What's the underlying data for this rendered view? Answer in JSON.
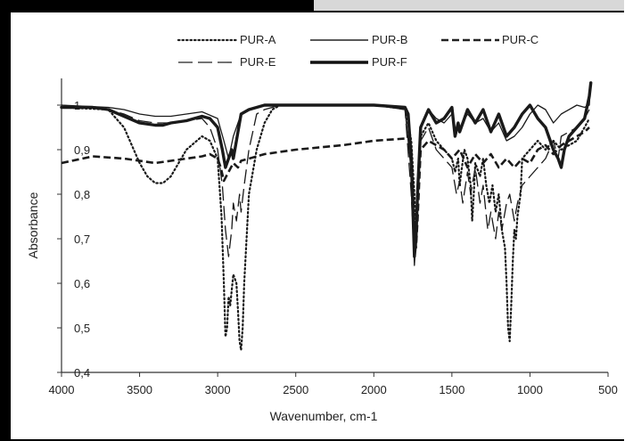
{
  "chart_data": {
    "type": "line",
    "title": "",
    "xlabel": "Wavenumber, cm-1",
    "ylabel": "Absorbance",
    "xlim": [
      4000,
      500
    ],
    "ylim": [
      0.4,
      1.06
    ],
    "x_ticks": [
      "4000",
      "3500",
      "3000",
      "2500",
      "2000",
      "1500",
      "1000",
      "500"
    ],
    "x_tick_values": [
      4000,
      3500,
      3000,
      2500,
      2000,
      1500,
      1000,
      500
    ],
    "y_ticks": [
      "0,4",
      "0,5",
      "0,6",
      "0,7",
      "0,8",
      "0,9",
      "1"
    ],
    "y_tick_values": [
      0.4,
      0.5,
      0.6,
      0.7,
      0.8,
      0.9,
      1.0
    ],
    "grid": false,
    "legend_position": "top",
    "series": [
      {
        "name": "PUR-A",
        "style": "dotted",
        "x": [
          4000,
          3700,
          3600,
          3500,
          3450,
          3400,
          3350,
          3300,
          3200,
          3100,
          3050,
          3000,
          2975,
          2960,
          2950,
          2940,
          2930,
          2920,
          2900,
          2880,
          2870,
          2860,
          2850,
          2840,
          2830,
          2800,
          2750,
          2700,
          2650,
          2600,
          2000,
          1800,
          1760,
          1740,
          1730,
          1720,
          1700,
          1650,
          1600,
          1550,
          1500,
          1480,
          1460,
          1450,
          1440,
          1420,
          1400,
          1380,
          1370,
          1360,
          1350,
          1320,
          1300,
          1280,
          1260,
          1240,
          1220,
          1200,
          1180,
          1160,
          1150,
          1140,
          1130,
          1120,
          1110,
          1100,
          1090,
          1080,
          1060,
          1050,
          1000,
          950,
          900,
          850,
          800,
          700,
          650,
          620
        ],
        "y": [
          0.995,
          0.99,
          0.95,
          0.87,
          0.84,
          0.825,
          0.825,
          0.84,
          0.9,
          0.93,
          0.92,
          0.88,
          0.75,
          0.6,
          0.48,
          0.5,
          0.57,
          0.55,
          0.62,
          0.6,
          0.54,
          0.47,
          0.45,
          0.5,
          0.6,
          0.8,
          0.9,
          0.96,
          0.99,
          1.0,
          1.0,
          0.995,
          0.92,
          0.8,
          0.7,
          0.78,
          0.93,
          0.96,
          0.92,
          0.9,
          0.88,
          0.85,
          0.88,
          0.82,
          0.85,
          0.9,
          0.88,
          0.82,
          0.74,
          0.8,
          0.87,
          0.84,
          0.88,
          0.82,
          0.78,
          0.82,
          0.76,
          0.8,
          0.72,
          0.68,
          0.6,
          0.5,
          0.47,
          0.55,
          0.65,
          0.72,
          0.7,
          0.75,
          0.8,
          0.88,
          0.9,
          0.92,
          0.9,
          0.92,
          0.9,
          0.92,
          0.95,
          0.97
        ]
      },
      {
        "name": "PUR-B",
        "style": "solid",
        "x": [
          4000,
          3700,
          3600,
          3500,
          3400,
          3300,
          3200,
          3100,
          3000,
          2960,
          2930,
          2900,
          2850,
          2800,
          2700,
          2500,
          2000,
          1800,
          1760,
          1740,
          1730,
          1720,
          1700,
          1650,
          1600,
          1550,
          1500,
          1480,
          1450,
          1400,
          1350,
          1300,
          1250,
          1200,
          1150,
          1100,
          1050,
          1000,
          950,
          900,
          850,
          800,
          700,
          650,
          620,
          610
        ],
        "y": [
          1.0,
          0.995,
          0.99,
          0.98,
          0.975,
          0.975,
          0.98,
          0.985,
          0.97,
          0.92,
          0.88,
          0.93,
          0.98,
          0.99,
          1.0,
          1.0,
          1.0,
          0.99,
          0.85,
          0.64,
          0.7,
          0.8,
          0.95,
          0.99,
          0.97,
          0.96,
          0.98,
          0.94,
          0.95,
          0.98,
          0.96,
          0.97,
          0.94,
          0.96,
          0.92,
          0.93,
          0.95,
          0.98,
          1.0,
          0.99,
          0.96,
          0.98,
          1.0,
          0.995,
          1.0,
          1.05
        ]
      },
      {
        "name": "PUR-C",
        "style": "dashed",
        "x": [
          4000,
          3800,
          3600,
          3400,
          3300,
          3200,
          3100,
          3050,
          3000,
          2980,
          2960,
          2930,
          2900,
          2870,
          2850,
          2800,
          2700,
          2500,
          2200,
          2000,
          1800,
          1780,
          1760,
          1740,
          1730,
          1720,
          1700,
          1650,
          1600,
          1550,
          1500,
          1450,
          1400,
          1350,
          1300,
          1250,
          1200,
          1150,
          1100,
          1050,
          1000,
          950,
          900,
          850,
          800,
          700,
          650,
          620
        ],
        "y": [
          0.87,
          0.885,
          0.88,
          0.87,
          0.875,
          0.88,
          0.885,
          0.89,
          0.88,
          0.86,
          0.83,
          0.85,
          0.87,
          0.86,
          0.875,
          0.88,
          0.89,
          0.9,
          0.91,
          0.92,
          0.925,
          0.93,
          0.9,
          0.72,
          0.68,
          0.74,
          0.9,
          0.92,
          0.91,
          0.9,
          0.88,
          0.9,
          0.86,
          0.89,
          0.87,
          0.89,
          0.86,
          0.88,
          0.86,
          0.88,
          0.87,
          0.9,
          0.91,
          0.89,
          0.91,
          0.93,
          0.94,
          0.95
        ]
      },
      {
        "name": "PUR-E",
        "style": "longdash",
        "x": [
          4000,
          3700,
          3600,
          3500,
          3400,
          3300,
          3200,
          3100,
          3050,
          3000,
          2970,
          2950,
          2930,
          2910,
          2900,
          2880,
          2860,
          2850,
          2830,
          2800,
          2750,
          2700,
          2600,
          2000,
          1800,
          1760,
          1740,
          1730,
          1720,
          1700,
          1650,
          1600,
          1550,
          1500,
          1470,
          1450,
          1430,
          1400,
          1380,
          1350,
          1320,
          1300,
          1270,
          1250,
          1220,
          1200,
          1180,
          1150,
          1130,
          1100,
          1080,
          1050,
          1000,
          950,
          900,
          850,
          820,
          800,
          700,
          650,
          620
        ],
        "y": [
          1.0,
          0.99,
          0.98,
          0.965,
          0.96,
          0.96,
          0.965,
          0.97,
          0.95,
          0.9,
          0.82,
          0.72,
          0.66,
          0.72,
          0.78,
          0.74,
          0.8,
          0.76,
          0.82,
          0.9,
          0.98,
          0.99,
          1.0,
          1.0,
          0.99,
          0.8,
          0.65,
          0.7,
          0.78,
          0.92,
          0.95,
          0.9,
          0.88,
          0.86,
          0.8,
          0.83,
          0.78,
          0.85,
          0.8,
          0.86,
          0.78,
          0.82,
          0.72,
          0.76,
          0.7,
          0.76,
          0.72,
          0.78,
          0.8,
          0.74,
          0.78,
          0.82,
          0.84,
          0.86,
          0.88,
          0.92,
          0.88,
          0.93,
          0.95,
          0.97,
          0.99
        ]
      },
      {
        "name": "PUR-F",
        "style": "thick",
        "x": [
          4000,
          3800,
          3700,
          3600,
          3500,
          3400,
          3350,
          3300,
          3200,
          3100,
          3050,
          3000,
          2970,
          2950,
          2930,
          2910,
          2900,
          2880,
          2850,
          2800,
          2700,
          2500,
          2000,
          1800,
          1780,
          1760,
          1740,
          1730,
          1720,
          1700,
          1650,
          1600,
          1550,
          1500,
          1480,
          1460,
          1450,
          1420,
          1400,
          1350,
          1300,
          1250,
          1200,
          1150,
          1100,
          1050,
          1000,
          950,
          900,
          850,
          820,
          800,
          780,
          750,
          700,
          650,
          620,
          610
        ],
        "y": [
          0.995,
          0.995,
          0.99,
          0.975,
          0.96,
          0.955,
          0.955,
          0.96,
          0.965,
          0.975,
          0.97,
          0.95,
          0.9,
          0.86,
          0.88,
          0.9,
          0.88,
          0.92,
          0.98,
          0.99,
          1.0,
          1.0,
          1.0,
          0.995,
          0.98,
          0.88,
          0.66,
          0.7,
          0.8,
          0.95,
          0.99,
          0.96,
          0.97,
          0.995,
          0.93,
          0.96,
          0.94,
          0.97,
          0.99,
          0.96,
          0.99,
          0.94,
          0.98,
          0.93,
          0.95,
          0.98,
          1.0,
          0.97,
          0.95,
          0.9,
          0.88,
          0.86,
          0.9,
          0.93,
          0.95,
          0.97,
          1.02,
          1.05
        ]
      }
    ]
  },
  "legend_labels": {
    "pur_a": "PUR-A",
    "pur_b": "PUR-B",
    "pur_c": "PUR-C",
    "pur_e": "PUR-E",
    "pur_f": "PUR-F"
  }
}
